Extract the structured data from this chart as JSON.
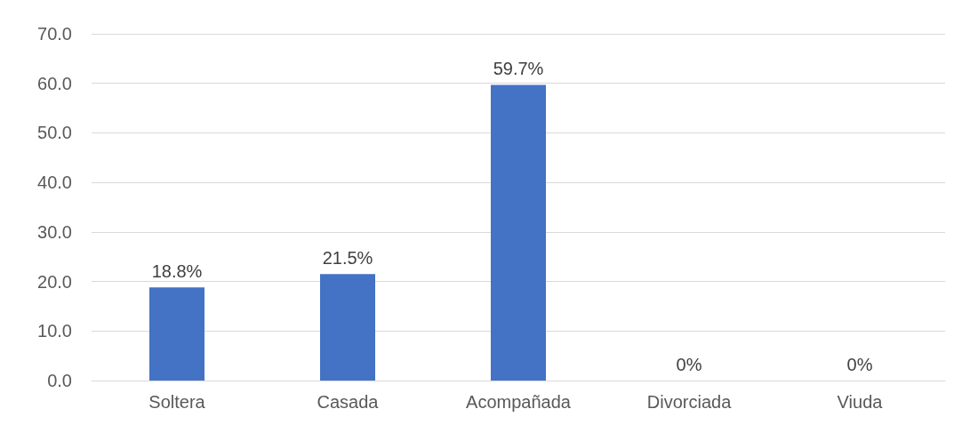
{
  "chart_data": {
    "type": "bar",
    "categories": [
      "Soltera",
      "Casada",
      "Acompañada",
      "Divorciada",
      "Viuda"
    ],
    "values": [
      18.8,
      21.5,
      59.7,
      0,
      0
    ],
    "value_labels": [
      "18.8%",
      "21.5%",
      "59.7%",
      "0%",
      "0%"
    ],
    "color": "#4472c4",
    "ylim": [
      0,
      70
    ],
    "yticks": [
      {
        "value": 0,
        "label": "0.0"
      },
      {
        "value": 10,
        "label": "10.0"
      },
      {
        "value": 20,
        "label": "20.0"
      },
      {
        "value": 30,
        "label": "30.0"
      },
      {
        "value": 40,
        "label": "40.0"
      },
      {
        "value": 50,
        "label": "50.0"
      },
      {
        "value": 60,
        "label": "60.0"
      },
      {
        "value": 70,
        "label": "70.0"
      }
    ],
    "grid": "y"
  }
}
